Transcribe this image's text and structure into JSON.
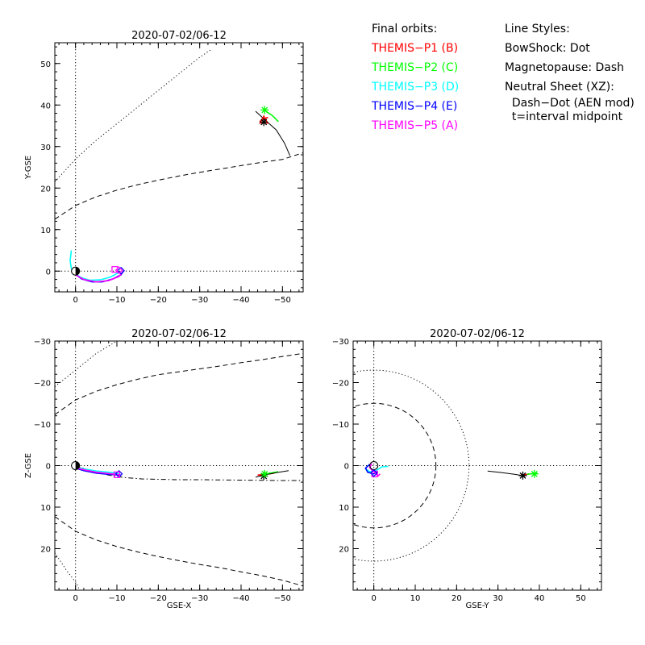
{
  "colors": {
    "P1": "#ff0000",
    "P2": "#00ff00",
    "P3": "#00ffff",
    "P4": "#0000ff",
    "P5": "#ff00ff",
    "axes": "#000000"
  },
  "legend": {
    "orbits_title": "Final orbits:",
    "orbits": [
      {
        "label": "THEMIS−P1 (B)",
        "color": "#ff0000"
      },
      {
        "label": "THEMIS−P2 (C)",
        "color": "#00ff00"
      },
      {
        "label": "THEMIS−P3 (D)",
        "color": "#00ffff"
      },
      {
        "label": "THEMIS−P4 (E)",
        "color": "#0000ff"
      },
      {
        "label": "THEMIS−P5 (A)",
        "color": "#ff00ff"
      }
    ],
    "styles_title": "Line Styles:",
    "styles": [
      "BowShock: Dot",
      "Magnetopause: Dash",
      "Neutral Sheet (XZ):",
      "  Dash−Dot (AEN mod)",
      "  t=interval midpoint"
    ]
  },
  "chart_data": [
    {
      "type": "line",
      "panel": "top-left",
      "title": "2020-07-02/06-12",
      "xlabel": "",
      "ylabel": "Y-GSE",
      "xlim": [
        5,
        -55
      ],
      "ylim": [
        55,
        -5
      ],
      "xticks": [
        0,
        -10,
        -20,
        -30,
        -40,
        -50
      ],
      "yticks": [
        0,
        10,
        20,
        30,
        40,
        50
      ],
      "series": [
        {
          "role": "magnetopause",
          "style": "dash",
          "color": "#000000",
          "x": [
            5,
            0,
            -5,
            -10,
            -15,
            -20,
            -25,
            -30,
            -35,
            -40,
            -45,
            -50,
            -55
          ],
          "y": [
            12.5,
            15.8,
            17.9,
            19.5,
            20.8,
            21.9,
            22.9,
            23.8,
            24.6,
            25.4,
            26.2,
            26.9,
            28.5
          ]
        },
        {
          "role": "bow-shock",
          "style": "dot",
          "color": "#000000",
          "x": [
            5,
            0,
            -5,
            -10,
            -15,
            -20,
            -25,
            -30,
            -33
          ],
          "y": [
            21.5,
            27.0,
            31.5,
            35.5,
            39.5,
            43.5,
            47.5,
            51.5,
            53.5
          ]
        },
        {
          "name": "THEMIS-P1 (B)",
          "color": "#ff0000",
          "x": [
            -44.5,
            -45.5,
            -46.5
          ],
          "y": [
            36.0,
            36.7,
            37.0
          ]
        },
        {
          "name": "THEMIS-P2 (C)",
          "color": "#00ff00",
          "x": [
            -46.0,
            -47.5,
            -49.0
          ],
          "y": [
            38.5,
            37.5,
            36.0
          ]
        },
        {
          "name": "THEMIS-P3 (D)",
          "color": "#00ffff",
          "x": [
            1.0,
            1.3,
            1.0,
            0,
            -1.5,
            -3.5,
            -6,
            -8.5,
            -10.5
          ],
          "y": [
            5.0,
            2.5,
            0.6,
            -0.7,
            -1.6,
            -2.2,
            -2.1,
            -1.4,
            -0.3
          ]
        },
        {
          "name": "THEMIS-P4 (E)",
          "color": "#0000ff",
          "x": [
            0.3,
            0,
            -1.5,
            -4,
            -6.5,
            -9,
            -11,
            -11.5
          ],
          "y": [
            0.6,
            -0.8,
            -1.9,
            -2.6,
            -2.6,
            -1.9,
            -0.9,
            -0.1
          ]
        },
        {
          "name": "THEMIS-P5 (A)",
          "color": "#ff00ff",
          "x": [
            0.5,
            0,
            -2,
            -5,
            -8,
            -10.5,
            -11.5
          ],
          "y": [
            0.4,
            -0.9,
            -2.0,
            -2.6,
            -2.3,
            -1.3,
            -0.1
          ]
        },
        {
          "role": "spacecraft-track",
          "color": "#000000",
          "x": [
            -43.5,
            -46,
            -48.5,
            -50.5,
            -51.8
          ],
          "y": [
            38.5,
            36.2,
            34.0,
            30.8,
            27.8
          ]
        }
      ],
      "markers": [
        {
          "kind": "earth",
          "x": 0,
          "y": 0
        },
        {
          "kind": "diamond",
          "color": "#0000ff",
          "x": -11.0,
          "y": 0.1
        },
        {
          "kind": "diamond",
          "color": "#ff00ff",
          "x": -10.5,
          "y": 0.2
        },
        {
          "kind": "square",
          "color": "#ff00ff",
          "x": -9.5,
          "y": 0.4
        },
        {
          "kind": "triangle",
          "color": "#ff0000",
          "x": -45.5,
          "y": 36.4
        },
        {
          "kind": "asterisk",
          "color": "#000000",
          "x": -45.5,
          "y": 35.9
        },
        {
          "kind": "asterisk",
          "color": "#00ff00",
          "x": -45.7,
          "y": 38.8
        }
      ],
      "reference_lines": {
        "x0": true,
        "y0": true
      }
    },
    {
      "type": "line",
      "panel": "bottom-left",
      "title": "2020-07-02/06-12",
      "xlabel": "GSE-X",
      "ylabel": "Z-GSE",
      "xlim": [
        5,
        -55
      ],
      "ylim": [
        -30,
        30
      ],
      "xticks": [
        0,
        -10,
        -20,
        -30,
        -40,
        -50
      ],
      "yticks": [
        -30,
        -20,
        -10,
        0,
        10,
        20
      ],
      "series": [
        {
          "role": "magnetopause-north",
          "style": "dash",
          "color": "#000000",
          "x": [
            5,
            0,
            -5,
            -10,
            -15,
            -20,
            -25,
            -30,
            -35,
            -40,
            -45,
            -50,
            -55
          ],
          "y": [
            12.3,
            15.8,
            17.9,
            19.5,
            20.8,
            21.9,
            22.9,
            23.8,
            24.6,
            25.6,
            26.5,
            27.6,
            29.0
          ]
        },
        {
          "role": "magnetopause-south",
          "style": "dash",
          "color": "#000000",
          "x": [
            5,
            0,
            -5,
            -10,
            -15,
            -20,
            -25,
            -30,
            -35,
            -40,
            -45,
            -50,
            -55
          ],
          "y": [
            -12.3,
            -15.8,
            -17.9,
            -19.5,
            -20.8,
            -21.9,
            -22.6,
            -23.3,
            -24.0,
            -24.8,
            -25.5,
            -26.3,
            -27.0
          ]
        },
        {
          "role": "bow-shock-north",
          "style": "dot",
          "color": "#000000",
          "x": [
            5,
            2,
            0,
            -1
          ],
          "y": [
            21.0,
            25.5,
            28.0,
            30.0
          ]
        },
        {
          "role": "bow-shock-south",
          "style": "dot",
          "color": "#000000",
          "x": [
            5,
            0,
            -5,
            -10
          ],
          "y": [
            -19.0,
            -23.0,
            -27.0,
            -30.0
          ]
        },
        {
          "role": "neutral-sheet",
          "style": "dashdot",
          "color": "#000000",
          "x": [
            0,
            -4,
            -8,
            -12,
            -16,
            -20,
            -25,
            -30,
            -40,
            -50,
            -55
          ],
          "y": [
            0,
            1.3,
            2.3,
            2.9,
            3.2,
            3.3,
            3.4,
            3.4,
            3.5,
            3.6,
            3.6
          ]
        },
        {
          "name": "THEMIS-P3 (D)",
          "color": "#00ffff",
          "x": [
            0.5,
            -2,
            -5,
            -8,
            -10.5
          ],
          "y": [
            0.2,
            0.8,
            1.3,
            1.6,
            1.9
          ]
        },
        {
          "name": "THEMIS-P4 (E)",
          "color": "#0000ff",
          "x": [
            0.3,
            -2,
            -5,
            -8,
            -11
          ],
          "y": [
            0.5,
            1.2,
            1.8,
            2.1,
            2.3
          ]
        },
        {
          "name": "THEMIS-P5 (A)",
          "color": "#ff00ff",
          "x": [
            0.3,
            -2,
            -5,
            -8,
            -10.5
          ],
          "y": [
            0.4,
            1.0,
            1.6,
            1.9,
            2.2
          ]
        },
        {
          "name": "THEMIS-P1 (B)",
          "color": "#ff0000",
          "x": [
            -44,
            -46,
            -48
          ],
          "y": [
            2.3,
            2.1,
            1.8
          ]
        },
        {
          "name": "THEMIS-P2 (C)",
          "color": "#00ff00",
          "x": [
            -45,
            -47,
            -49
          ],
          "y": [
            2.2,
            1.8,
            1.5
          ]
        },
        {
          "role": "spacecraft-track",
          "color": "#000000",
          "x": [
            -43.5,
            -46,
            -48.5,
            -51.5
          ],
          "y": [
            2.8,
            2.2,
            1.7,
            1.2
          ]
        }
      ],
      "markers": [
        {
          "kind": "earth",
          "x": 0,
          "y": 0
        },
        {
          "kind": "diamond",
          "color": "#0000ff",
          "x": -10.5,
          "y": 2.0
        },
        {
          "kind": "square",
          "color": "#ff00ff",
          "x": -10.0,
          "y": 2.2
        },
        {
          "kind": "asterisk",
          "color": "#000000",
          "x": -45.5,
          "y": 2.5
        },
        {
          "kind": "asterisk",
          "color": "#00ff00",
          "x": -45.7,
          "y": 2.0
        }
      ],
      "reference_lines": {
        "x0": true,
        "y0": true
      }
    },
    {
      "type": "line",
      "panel": "bottom-right",
      "title": "2020-07-02/06-12",
      "xlabel": "GSE-Y",
      "ylabel": "",
      "xlim": [
        -5,
        55
      ],
      "ylim": [
        -30,
        30
      ],
      "xticks": [
        0,
        10,
        20,
        30,
        40,
        50
      ],
      "yticks": [
        -30,
        -20,
        -10,
        0,
        10,
        20
      ],
      "series": [
        {
          "role": "magnetopause-cross-section",
          "style": "dash",
          "color": "#000000",
          "circle": {
            "cx": 0,
            "cy": 0,
            "r": 15
          }
        },
        {
          "role": "bow-shock-cross-section",
          "style": "dot",
          "color": "#000000",
          "circle": {
            "cx": 0,
            "cy": 0,
            "r": 23
          }
        },
        {
          "name": "THEMIS-P3 (D)",
          "color": "#00ffff",
          "x": [
            -1.5,
            -2,
            -1,
            0.5,
            2,
            3.5
          ],
          "y": [
            0,
            0.8,
            1.5,
            1.2,
            0.3,
            0.2
          ]
        },
        {
          "name": "THEMIS-P4 (E)",
          "color": "#0000ff",
          "x": [
            -1,
            -2,
            -1.5,
            0,
            0.8
          ],
          "y": [
            -0.3,
            0.6,
            1.6,
            2.0,
            1.5
          ]
        },
        {
          "name": "THEMIS-P5 (A)",
          "color": "#ff00ff",
          "x": [
            -0.5,
            -1,
            0,
            1,
            1.5
          ],
          "y": [
            -0.5,
            0.5,
            1.5,
            2.5,
            2.0
          ]
        },
        {
          "name": "THEMIS-P1 (B)",
          "color": "#ff0000",
          "x": [
            35.5,
            36.5,
            37.5
          ],
          "y": [
            2.3,
            2.2,
            2.0
          ]
        },
        {
          "name": "THEMIS-P2 (C)",
          "color": "#00ff00",
          "x": [
            37,
            38.5,
            39.5
          ],
          "y": [
            2.1,
            1.9,
            1.8
          ]
        },
        {
          "role": "spacecraft-track",
          "color": "#000000",
          "x": [
            27.5,
            31,
            34,
            36.5
          ],
          "y": [
            1.3,
            1.7,
            2.1,
            2.5
          ]
        }
      ],
      "markers": [
        {
          "kind": "circle-open",
          "color": "#000000",
          "x": 0,
          "y": 0
        },
        {
          "kind": "square",
          "color": "#ff00ff",
          "x": 0.2,
          "y": 2.0
        },
        {
          "kind": "diamond",
          "color": "#0000ff",
          "x": 0,
          "y": 1.8
        },
        {
          "kind": "asterisk",
          "color": "#000000",
          "x": 36.0,
          "y": 2.4
        },
        {
          "kind": "asterisk",
          "color": "#00ff00",
          "x": 38.8,
          "y": 2.0
        }
      ],
      "reference_lines": {
        "x0": true,
        "y0": true
      }
    }
  ]
}
